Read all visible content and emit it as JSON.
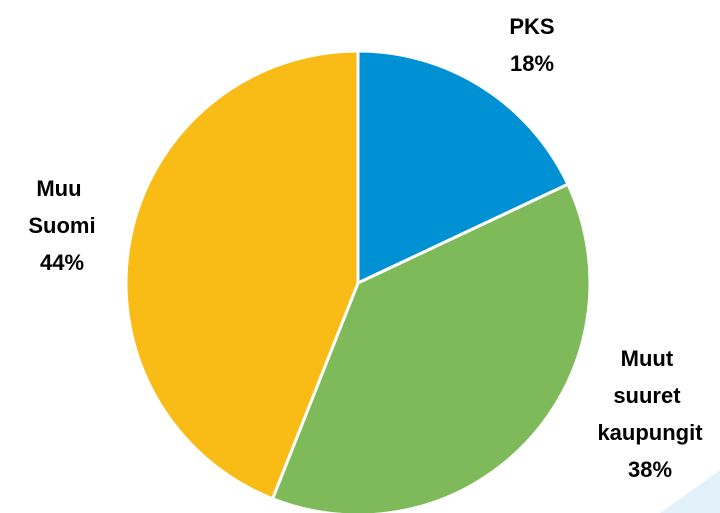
{
  "chart_data": {
    "type": "pie",
    "categories": [
      "PKS",
      "Muut suuret kaupungit",
      "Muu Suomi"
    ],
    "values": [
      18,
      38,
      44
    ],
    "value_labels": [
      "18%",
      "38%",
      "44%"
    ],
    "colors": [
      "#0091d5",
      "#7fba5a",
      "#f9bb16"
    ]
  }
}
